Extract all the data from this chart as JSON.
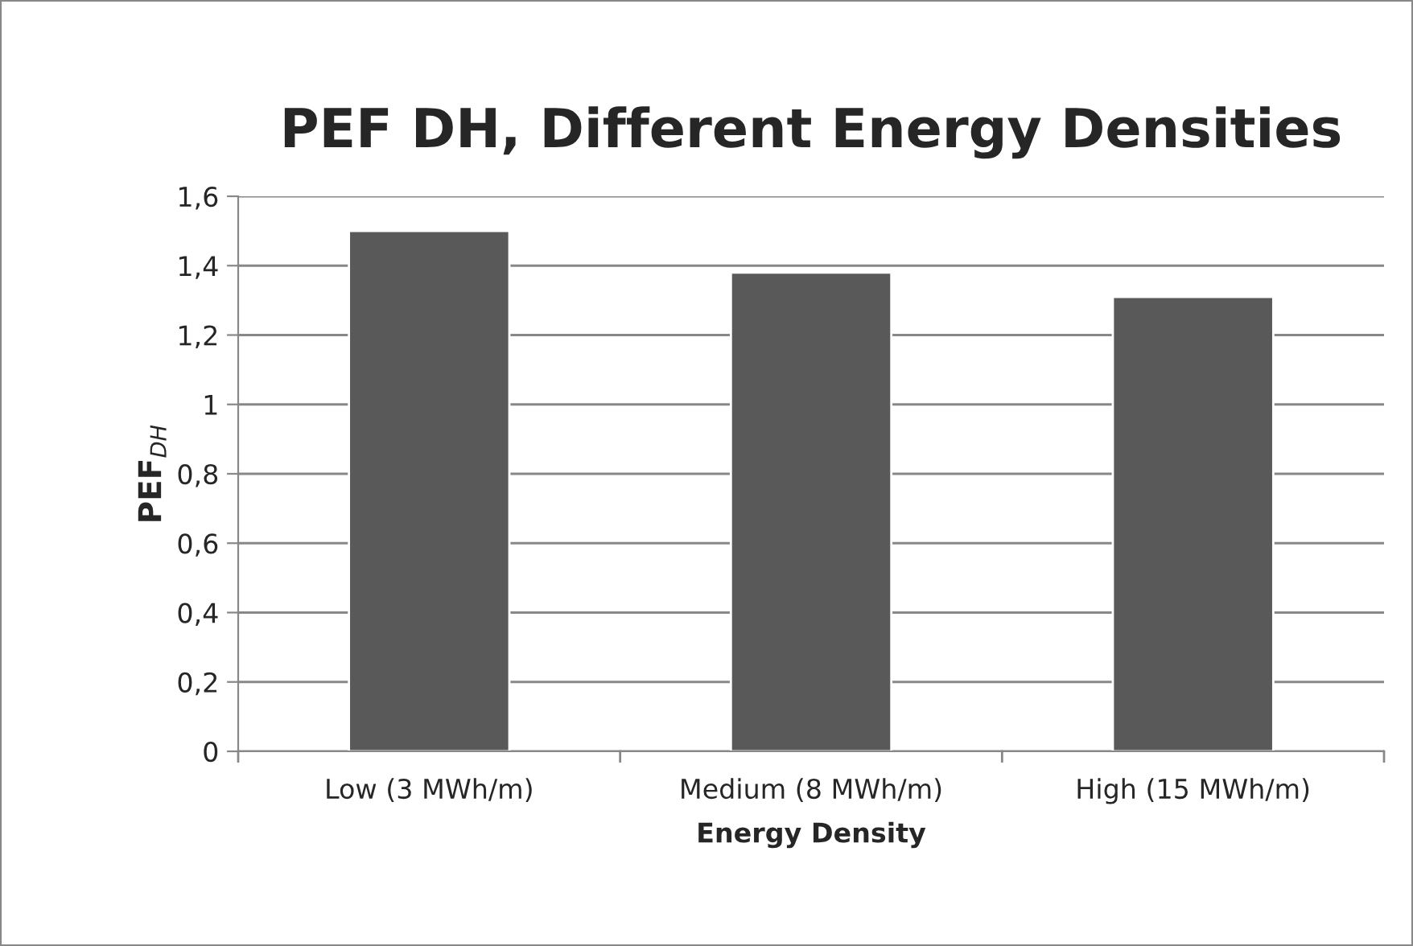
{
  "chart_data": {
    "type": "bar",
    "title": "PEF DH, Different Energy Densities",
    "xlabel": "Energy Density",
    "ylabel": "PEF$_{DH}$",
    "categories": [
      "Low (3 MWh/m)",
      "Medium (8 MWh/m)",
      "High (15 MWh/m)"
    ],
    "values": [
      1.5,
      1.38,
      1.31
    ],
    "color": "#595959",
    "ylim": [
      0,
      1.6
    ],
    "yticks": [
      0,
      {
        "value": 0.2,
        "label": "0,2"
      },
      {
        "value": 0.4,
        "label": "0,4"
      },
      {
        "value": 0.6,
        "label": "0,6"
      },
      {
        "value": 0.8,
        "label": "0,8"
      },
      1,
      {
        "value": 1.2,
        "label": "1,2"
      },
      {
        "value": 1.4,
        "label": "1,4"
      },
      {
        "value": 1.6,
        "label": "1,6"
      }
    ],
    "grid": "y",
    "legend": false
  }
}
